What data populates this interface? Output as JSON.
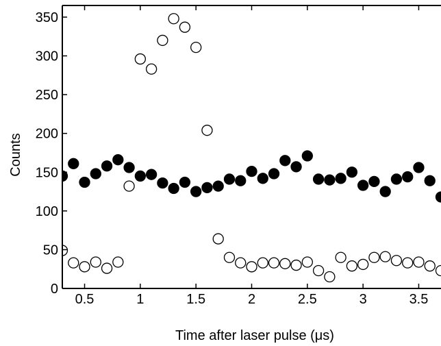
{
  "chart_data": {
    "type": "scatter",
    "title": "",
    "xlabel": "Time after laser pulse (μs)",
    "ylabel": "Counts",
    "xlim": [
      0.3,
      3.7
    ],
    "ylim": [
      0,
      365
    ],
    "x_ticks": [
      0.5,
      1,
      1.5,
      2,
      2.5,
      3,
      3.5
    ],
    "x_tick_labels": [
      "0.5",
      "1",
      "1.5",
      "2",
      "2.5",
      "3",
      "3.5"
    ],
    "y_ticks": [
      0,
      50,
      100,
      150,
      200,
      250,
      300,
      350
    ],
    "y_tick_labels": [
      "0",
      "50",
      "100",
      "150",
      "200",
      "250",
      "300",
      "350"
    ],
    "grid": false,
    "series": [
      {
        "marker": "filled-circle",
        "color": "#000000",
        "x": [
          0.3,
          0.4,
          0.5,
          0.6,
          0.7,
          0.8,
          0.9,
          1.0,
          1.1,
          1.2,
          1.3,
          1.4,
          1.5,
          1.6,
          1.7,
          1.8,
          1.9,
          2.0,
          2.1,
          2.2,
          2.3,
          2.4,
          2.5,
          2.6,
          2.7,
          2.8,
          2.9,
          3.0,
          3.1,
          3.2,
          3.3,
          3.4,
          3.5,
          3.6,
          3.7
        ],
        "y": [
          145,
          161,
          137,
          148,
          158,
          166,
          156,
          145,
          147,
          136,
          129,
          137,
          125,
          130,
          132,
          141,
          139,
          151,
          142,
          148,
          165,
          157,
          171,
          141,
          140,
          142,
          150,
          133,
          138,
          125,
          141,
          144,
          156,
          139,
          118
        ]
      },
      {
        "marker": "open-circle",
        "color": "#000000",
        "x": [
          0.3,
          0.4,
          0.5,
          0.6,
          0.7,
          0.8,
          0.9,
          1.0,
          1.1,
          1.2,
          1.3,
          1.4,
          1.5,
          1.6,
          1.7,
          1.8,
          1.9,
          2.0,
          2.1,
          2.2,
          2.3,
          2.4,
          2.5,
          2.6,
          2.7,
          2.8,
          2.9,
          3.0,
          3.1,
          3.2,
          3.3,
          3.4,
          3.5,
          3.6,
          3.7
        ],
        "y": [
          49,
          33,
          28,
          34,
          26,
          34,
          132,
          296,
          283,
          320,
          348,
          337,
          311,
          204,
          64,
          40,
          33,
          28,
          33,
          33,
          32,
          30,
          34,
          23,
          15,
          40,
          29,
          31,
          40,
          41,
          36,
          33,
          34,
          29,
          23
        ]
      }
    ]
  }
}
